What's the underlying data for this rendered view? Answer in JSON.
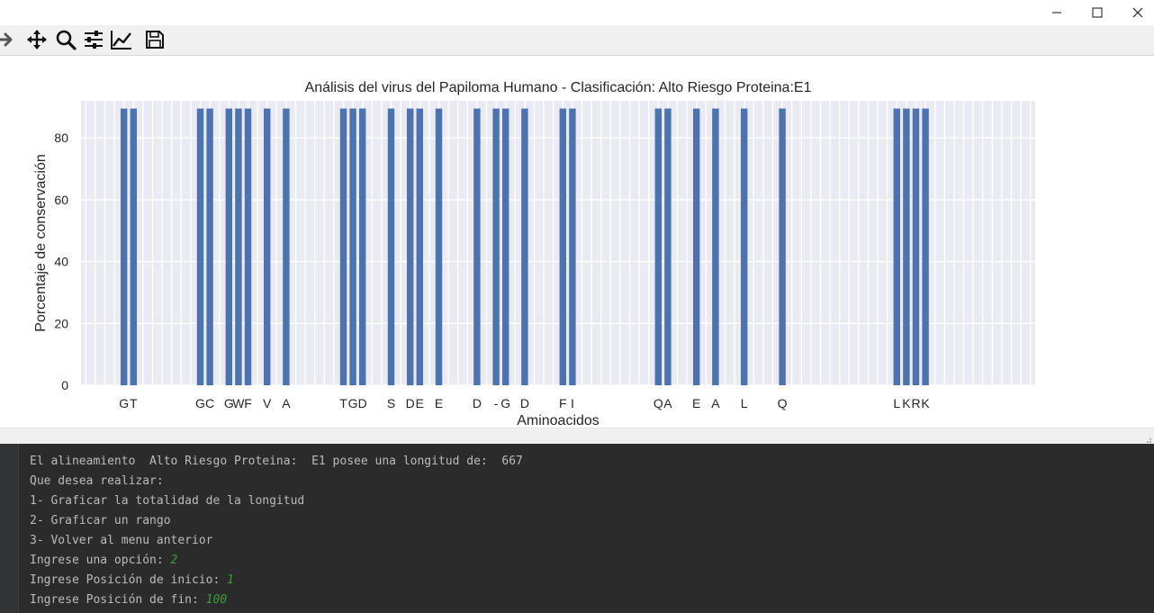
{
  "window": {
    "buttons": [
      "minimize",
      "maximize",
      "close"
    ]
  },
  "toolbar": {
    "tools": [
      "forward-icon",
      "pan-icon",
      "zoom-icon",
      "configure-subplots-icon",
      "edit-axis-icon",
      "save-icon"
    ]
  },
  "chart_data": {
    "type": "bar",
    "title": "Análisis del virus del Papiloma Humano - Clasificación: Alto Riesgo Proteina:E1",
    "xlabel": "Aminoacidos",
    "ylabel": "Porcentaje de conservación",
    "ylim": [
      0,
      92
    ],
    "yticks": [
      0,
      20,
      40,
      60,
      80
    ],
    "grid": true,
    "bar_color": "#4c72b0",
    "background_color": "#eaeaf2",
    "x": [
      4,
      5,
      12,
      13,
      15,
      16,
      17,
      19,
      21,
      27,
      28,
      29,
      32,
      34,
      35,
      37,
      41,
      43,
      44,
      46,
      50,
      51,
      60,
      61,
      64,
      66,
      69,
      73,
      85,
      86,
      87,
      88
    ],
    "values": [
      89.5,
      89.5,
      89.5,
      89.5,
      89.5,
      89.5,
      89.5,
      89.5,
      89.5,
      89.5,
      89.5,
      89.5,
      89.5,
      89.5,
      89.5,
      89.5,
      89.5,
      89.5,
      89.5,
      89.5,
      89.5,
      89.5,
      89.5,
      89.5,
      89.5,
      89.5,
      89.5,
      89.5,
      89.5,
      89.5,
      89.5,
      89.5
    ],
    "tick_labels": [
      "G",
      "T",
      "G",
      "C",
      "G",
      "W",
      "F",
      "V",
      "A",
      "T",
      "G",
      "D",
      "S",
      "D",
      "E",
      "E",
      "D",
      "-",
      "G",
      "D",
      "F",
      "I",
      "Q",
      "A",
      "E",
      "A",
      "L",
      "Q",
      "L",
      "K",
      "R",
      "K"
    ]
  },
  "console": {
    "line1": "El alineamiento  Alto Riesgo Proteina:  E1 posee una longitud de:  667",
    "line2": "Que desea realizar:",
    "line3": "1- Graficar la totalidad de la longitud",
    "line4": "2- Graficar un rango",
    "line5": "3- Volver al menu anterior",
    "line6_prompt": "Ingrese una opción: ",
    "line6_value": "2",
    "line7_prompt": "Ingrese Posición de inicio: ",
    "line7_value": "1",
    "line8_prompt": "Ingrese Posición de fin: ",
    "line8_value": "100"
  }
}
